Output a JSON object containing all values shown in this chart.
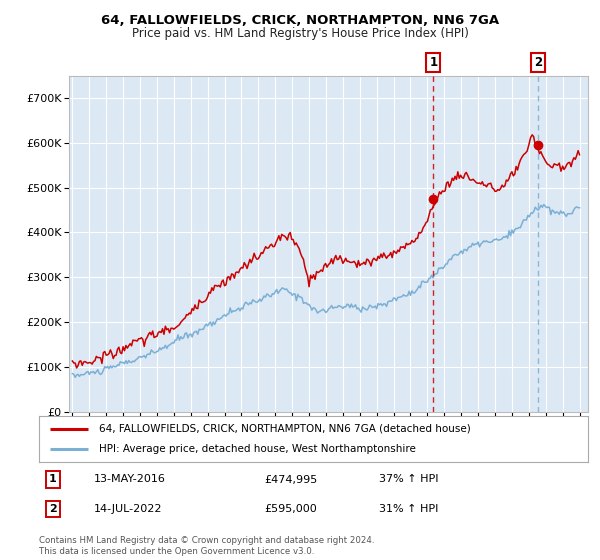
{
  "title1": "64, FALLOWFIELDS, CRICK, NORTHAMPTON, NN6 7GA",
  "title2": "Price paid vs. HM Land Registry's House Price Index (HPI)",
  "background_color": "#ffffff",
  "plot_bg_color": "#dce9f5",
  "grid_color": "#ffffff",
  "red_line_color": "#cc0000",
  "blue_line_color": "#7bafd4",
  "sale1_date_num": 2016.36,
  "sale1_price": 474995,
  "sale1_text": "13-MAY-2016",
  "sale1_pct": "37% ↑ HPI",
  "sale2_date_num": 2022.54,
  "sale2_price": 595000,
  "sale2_text": "14-JUL-2022",
  "sale2_pct": "31% ↑ HPI",
  "legend_red": "64, FALLOWFIELDS, CRICK, NORTHAMPTON, NN6 7GA (detached house)",
  "legend_blue": "HPI: Average price, detached house, West Northamptonshire",
  "footer": "Contains HM Land Registry data © Crown copyright and database right 2024.\nThis data is licensed under the Open Government Licence v3.0.",
  "ylim": [
    0,
    750000
  ],
  "xlim_start": 1994.8,
  "xlim_end": 2025.5,
  "yticks": [
    0,
    100000,
    200000,
    300000,
    400000,
    500000,
    600000,
    700000
  ],
  "ytick_labels": [
    "£0",
    "£100K",
    "£200K",
    "£300K",
    "£400K",
    "£500K",
    "£600K",
    "£700K"
  ],
  "xticks": [
    1995,
    1996,
    1997,
    1998,
    1999,
    2000,
    2001,
    2002,
    2003,
    2004,
    2005,
    2006,
    2007,
    2008,
    2009,
    2010,
    2011,
    2012,
    2013,
    2014,
    2015,
    2016,
    2017,
    2018,
    2019,
    2020,
    2021,
    2022,
    2023,
    2024,
    2025
  ]
}
